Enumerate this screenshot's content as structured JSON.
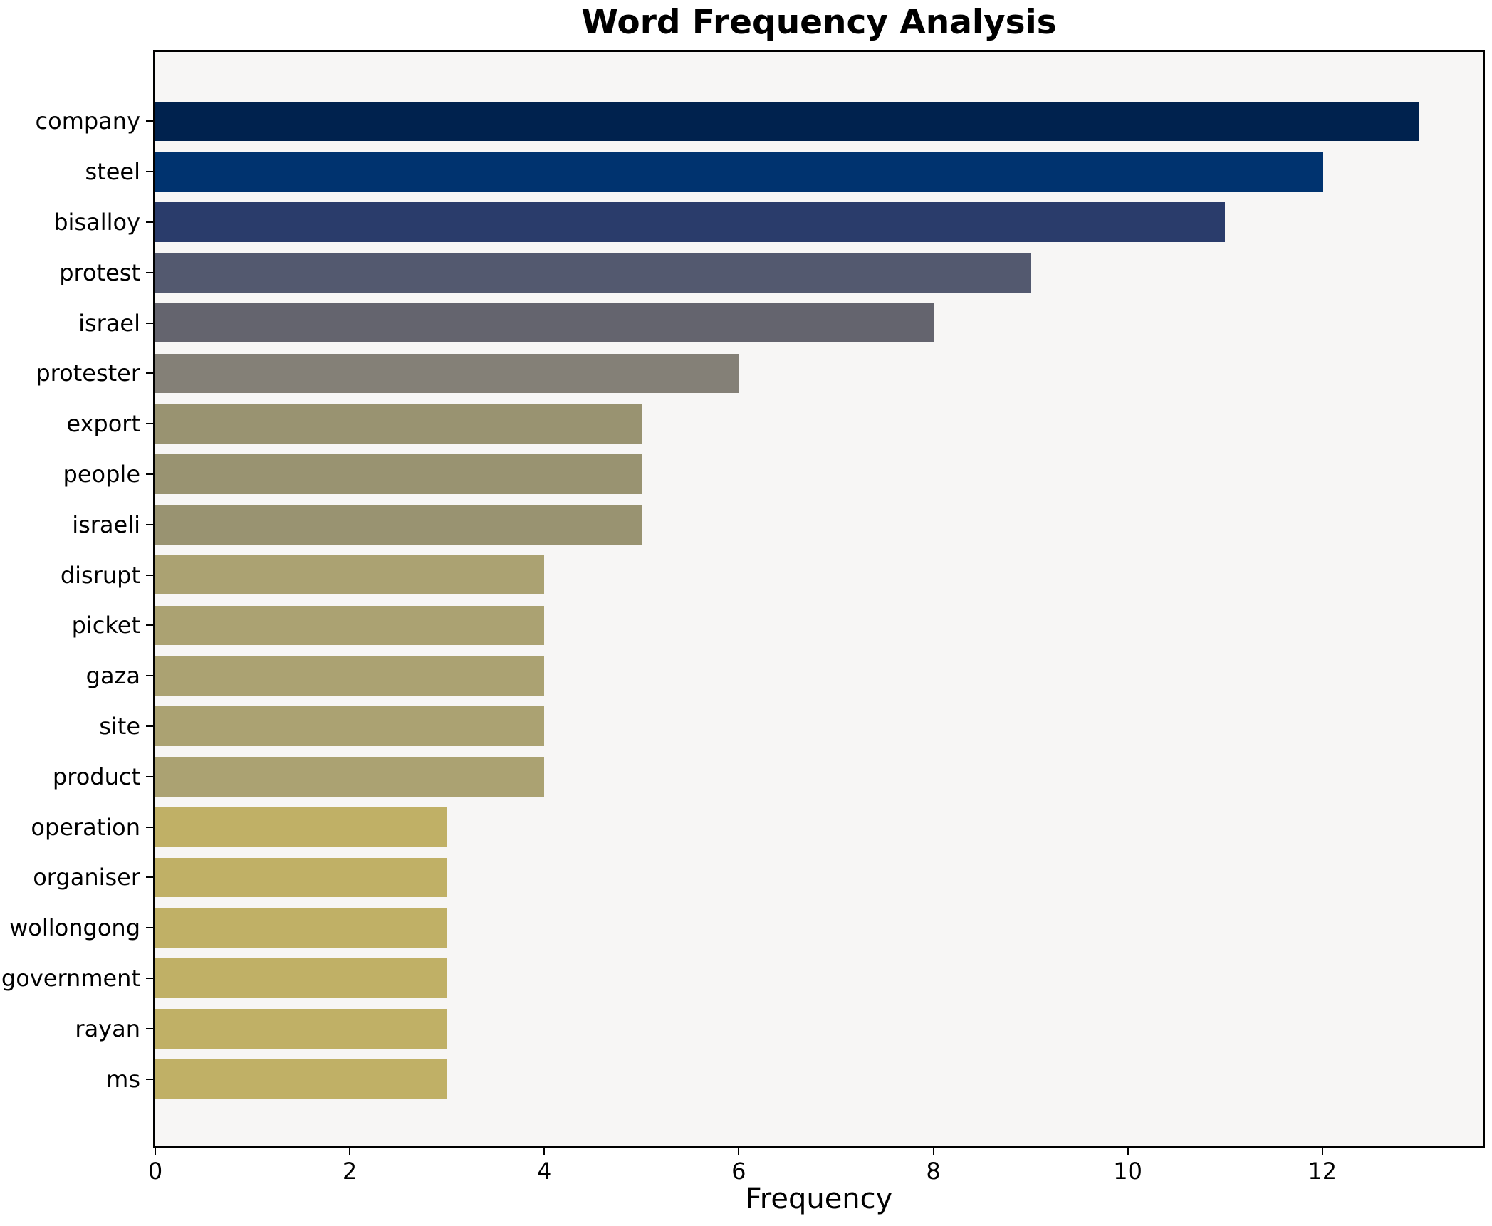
{
  "chart_data": {
    "type": "bar",
    "orientation": "horizontal",
    "title": "Word Frequency Analysis",
    "xlabel": "Frequency",
    "ylabel": "",
    "categories": [
      "company",
      "steel",
      "bisalloy",
      "protest",
      "israel",
      "protester",
      "export",
      "people",
      "israeli",
      "disrupt",
      "picket",
      "gaza",
      "site",
      "product",
      "operation",
      "organiser",
      "wollongong",
      "government",
      "rayan",
      "ms"
    ],
    "values": [
      13,
      12,
      11,
      9,
      8,
      6,
      5,
      5,
      5,
      4,
      4,
      4,
      4,
      4,
      3,
      3,
      3,
      3,
      3,
      3
    ],
    "bar_colors": [
      "#00224e",
      "#00336f",
      "#2a3c6b",
      "#53596f",
      "#64646e",
      "#848077",
      "#999371",
      "#999371",
      "#999371",
      "#aba272",
      "#aba272",
      "#aba272",
      "#aba272",
      "#aba272",
      "#c0b066",
      "#c0b066",
      "#c0b066",
      "#c0b066",
      "#c0b066",
      "#c0b066"
    ],
    "xticks": [
      0,
      2,
      4,
      6,
      8,
      10,
      12
    ],
    "xlim": [
      0,
      13.65
    ],
    "grid": false,
    "legend_position": "none",
    "plot_background": "#f7f6f5",
    "figure_background": "#ffffff",
    "spine_color": "#000000",
    "text_color": "#000000"
  }
}
